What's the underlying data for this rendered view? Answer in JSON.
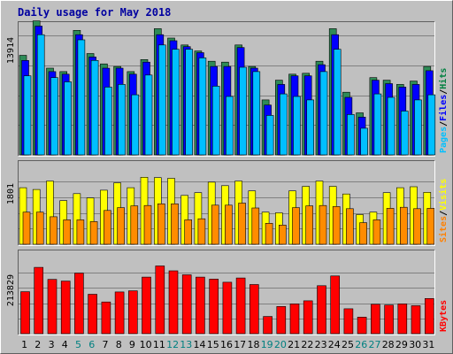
{
  "chart_data": {
    "type": "bar",
    "title": "Daily usage for May 2018",
    "categories": [
      "1",
      "2",
      "3",
      "4",
      "5",
      "6",
      "7",
      "8",
      "9",
      "10",
      "11",
      "12",
      "13",
      "14",
      "15",
      "16",
      "17",
      "18",
      "19",
      "20",
      "21",
      "22",
      "23",
      "24",
      "25",
      "26",
      "27",
      "28",
      "29",
      "30",
      "31"
    ],
    "weekend_days": [
      "5",
      "6",
      "12",
      "13",
      "19",
      "20",
      "26",
      "27"
    ],
    "panels": [
      {
        "id": "hits",
        "scale_max": 13914,
        "scale_label": "13914",
        "legend": [
          {
            "label": "Pages",
            "color": "#00c0ff"
          },
          {
            "label": "Files",
            "color": "#0000ff"
          },
          {
            "label": "Hits",
            "color": "#008040"
          }
        ],
        "series": [
          {
            "name": "Hits",
            "color": "#2e8b57",
            "values": [
              11600,
              15600,
              10100,
              9700,
              14500,
              11800,
              10600,
              10300,
              9700,
              11100,
              14700,
              13600,
              12800,
              12100,
              10900,
              10800,
              12800,
              10300,
              6400,
              8700,
              9400,
              9500,
              10900,
              14700,
              7300,
              4900,
              9000,
              8700,
              8200,
              8600,
              10300
            ]
          },
          {
            "name": "Files",
            "color": "#0000ff",
            "values": [
              11000,
              15000,
              9700,
              9400,
              14000,
              11400,
              10100,
              10100,
              9400,
              10800,
              14000,
              13300,
              12600,
              11900,
              10300,
              10300,
              12500,
              10100,
              5800,
              8200,
              9200,
              9200,
              10500,
              14000,
              6700,
              4400,
              8700,
              8300,
              7900,
              8200,
              9800
            ]
          },
          {
            "name": "Pages",
            "color": "#00bfff",
            "values": [
              9200,
              14000,
              9000,
              8500,
              13400,
              11000,
              7900,
              8200,
              7000,
              9300,
              12800,
              12300,
              12300,
              11300,
              8000,
              6800,
              10200,
              9700,
              4600,
              7100,
              6800,
              6400,
              9700,
              12300,
              4700,
              3100,
              7100,
              6700,
              5100,
              6400,
              7000
            ]
          }
        ]
      },
      {
        "id": "visits",
        "scale_max": 1801,
        "scale_label": "1801",
        "legend": [
          {
            "label": "Sites",
            "color": "#ff8000"
          },
          {
            "label": "Visits",
            "color": "#ffff00"
          }
        ],
        "series": [
          {
            "name": "Visits",
            "color": "#ffff00",
            "values": [
              1620,
              1570,
              1810,
              1250,
              1450,
              1330,
              1550,
              1760,
              1620,
              1920,
              1910,
              1890,
              1400,
              1480,
              1780,
              1680,
              1810,
              1530,
              920,
              900,
              1530,
              1660,
              1810,
              1660,
              1440,
              850,
              920,
              1480,
              1620,
              1650,
              1490
            ]
          },
          {
            "name": "Sites",
            "color": "#ff8c00",
            "values": [
              920,
              920,
              790,
              700,
              700,
              650,
              970,
              1050,
              1100,
              1110,
              1160,
              1160,
              700,
              730,
              1120,
              1120,
              1180,
              1040,
              600,
              550,
              1050,
              1100,
              1110,
              1080,
              1020,
              620,
              700,
              1030,
              1060,
              1020,
              1030
            ]
          }
        ]
      },
      {
        "id": "kbytes",
        "scale_max": 213829,
        "scale_label": "213829",
        "legend": [
          {
            "label": "KBytes",
            "color": "#ff0000"
          }
        ],
        "series": [
          {
            "name": "KBytes",
            "color": "#ff0000",
            "values": [
              147000,
              232000,
              190000,
              184000,
              212000,
              138000,
              111000,
              146000,
              150000,
              198000,
              237000,
              220000,
              206000,
              198000,
              191000,
              180000,
              195000,
              172000,
              60000,
              95000,
              104000,
              115000,
              168000,
              202000,
              87000,
              58000,
              103000,
              100000,
              104000,
              98000,
              123000
            ]
          }
        ]
      }
    ]
  }
}
